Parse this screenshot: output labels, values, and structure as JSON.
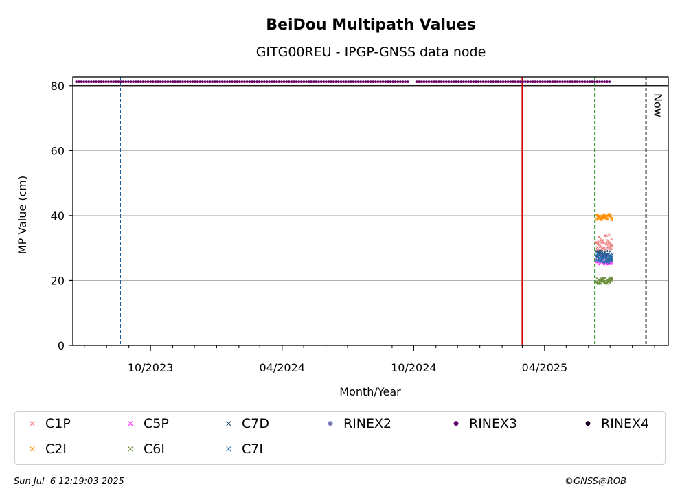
{
  "chart_data": {
    "type": "scatter",
    "title": "BeiDou Multipath Values",
    "subtitle": "GITG00REU - IPGP-GNSS data node",
    "xlabel": "Month/Year",
    "ylabel": "MP Value (cm)",
    "ylim": [
      0,
      80
    ],
    "yticks": [
      0,
      20,
      40,
      60,
      80
    ],
    "xticks": [
      "10/2023",
      "04/2024",
      "10/2024",
      "04/2025"
    ],
    "grid": "y",
    "now_label": "Now",
    "series": [
      {
        "name": "C1P",
        "color": "#f08080",
        "marker": "x",
        "center": 31.5,
        "spread": 2.5
      },
      {
        "name": "C2I",
        "color": "#ff8c00",
        "marker": "x",
        "center": 39.5,
        "spread": 0.9
      },
      {
        "name": "C5P",
        "color": "#ff33ff",
        "marker": "x",
        "center": 26.5,
        "spread": 1.5
      },
      {
        "name": "C6I",
        "color": "#6b8e3a",
        "marker": "x",
        "center": 20.0,
        "spread": 1.0
      },
      {
        "name": "C7D",
        "color": "#1f4e79",
        "marker": "x",
        "center": 27.5,
        "spread": 1.6
      },
      {
        "name": "C7I",
        "color": "#2a6faf",
        "marker": "x",
        "center": 27.0,
        "spread": 1.5
      },
      {
        "name": "RINEX2",
        "color": "#7b7bbf",
        "marker": "o"
      },
      {
        "name": "RINEX3",
        "color": "#660066",
        "marker": "o"
      },
      {
        "name": "RINEX4",
        "color": "#1a0020",
        "marker": "o"
      }
    ],
    "rinex3_line_y": 81.2,
    "vertical_lines": [
      {
        "name": "blue-dashed",
        "color": "#1f5f9f",
        "style": "dashed",
        "date": "2023-08-20"
      },
      {
        "name": "red-solid",
        "color": "#cc0000",
        "style": "solid",
        "date": "2025-03-01"
      },
      {
        "name": "green-dashed",
        "color": "#008000",
        "style": "dashed",
        "date": "2025-06-10"
      },
      {
        "name": "now-dashed",
        "color": "#000000",
        "style": "dashed",
        "date": "2025-08-20"
      }
    ],
    "threshold_y": 80
  },
  "footer": {
    "timestamp": "Sun Jul  6 12:19:03 2025",
    "credit": "©GNSS@ROB"
  },
  "legend": [
    {
      "name": "C1P",
      "color": "#f08080",
      "marker": "×"
    },
    {
      "name": "C5P",
      "color": "#ff33ff",
      "marker": "×"
    },
    {
      "name": "C7D",
      "color": "#1f4e79",
      "marker": "×"
    },
    {
      "name": "RINEX2",
      "color": "#7b7bbf",
      "marker": "●"
    },
    {
      "name": "RINEX3",
      "color": "#660066",
      "marker": "●"
    },
    {
      "name": "RINEX4",
      "color": "#1a0020",
      "marker": "●"
    },
    {
      "name": "C2I",
      "color": "#ff8c00",
      "marker": "×"
    },
    {
      "name": "C6I",
      "color": "#6b8e3a",
      "marker": "×"
    },
    {
      "name": "C7I",
      "color": "#2a6faf",
      "marker": "×"
    }
  ]
}
